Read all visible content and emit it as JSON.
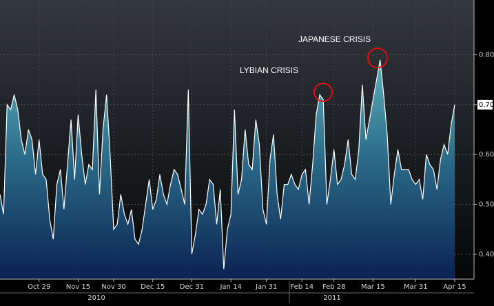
{
  "chart_data": {
    "type": "area",
    "series": [
      {
        "color": "#ffffff",
        "values": [
          0.52,
          0.48,
          0.7,
          0.69,
          0.72,
          0.69,
          0.63,
          0.6,
          0.65,
          0.63,
          0.56,
          0.63,
          0.56,
          0.55,
          0.47,
          0.43,
          0.54,
          0.57,
          0.49,
          0.58,
          0.67,
          0.55,
          0.68,
          0.6,
          0.54,
          0.58,
          0.57,
          0.73,
          0.52,
          0.65,
          0.72,
          0.6,
          0.45,
          0.46,
          0.52,
          0.48,
          0.46,
          0.49,
          0.43,
          0.42,
          0.45,
          0.5,
          0.55,
          0.49,
          0.51,
          0.56,
          0.52,
          0.5,
          0.54,
          0.57,
          0.56,
          0.53,
          0.5,
          0.73,
          0.4,
          0.44,
          0.49,
          0.48,
          0.5,
          0.55,
          0.54,
          0.46,
          0.53,
          0.37,
          0.45,
          0.48,
          0.69,
          0.52,
          0.55,
          0.65,
          0.58,
          0.57,
          0.67,
          0.62,
          0.49,
          0.46,
          0.59,
          0.64,
          0.52,
          0.47,
          0.54,
          0.54,
          0.56,
          0.54,
          0.53,
          0.56,
          0.57,
          0.5,
          0.58,
          0.68,
          0.72,
          0.71,
          0.5,
          0.55,
          0.61,
          0.54,
          0.55,
          0.58,
          0.63,
          0.56,
          0.55,
          0.61,
          0.74,
          0.63,
          0.67,
          0.71,
          0.75,
          0.79,
          0.72,
          0.64,
          0.5,
          0.56,
          0.61,
          0.57,
          0.57,
          0.57,
          0.55,
          0.54,
          0.55,
          0.51,
          0.6,
          0.58,
          0.57,
          0.53,
          0.59,
          0.62,
          0.6,
          0.66,
          0.7
        ]
      }
    ],
    "categories": [
      null,
      null,
      null,
      null,
      null,
      null,
      null,
      null,
      null,
      null,
      null,
      "Oct 29",
      null,
      null,
      null,
      null,
      null,
      null,
      null,
      null,
      null,
      null,
      "Nov 15",
      null,
      null,
      null,
      null,
      null,
      null,
      null,
      null,
      null,
      "Nov 30",
      null,
      null,
      null,
      null,
      null,
      null,
      null,
      null,
      null,
      null,
      "Dec 15",
      null,
      null,
      null,
      null,
      null,
      null,
      null,
      null,
      null,
      null,
      "Dec 31",
      null,
      null,
      null,
      null,
      null,
      null,
      null,
      null,
      null,
      null,
      "Jan 14",
      null,
      null,
      null,
      null,
      null,
      null,
      null,
      null,
      null,
      "Jan 31",
      null,
      null,
      null,
      null,
      null,
      null,
      null,
      null,
      null,
      "Feb 14",
      null,
      null,
      null,
      null,
      null,
      null,
      null,
      null,
      "Feb 28",
      null,
      null,
      null,
      null,
      null,
      null,
      null,
      null,
      null,
      null,
      "Mar 15",
      null,
      null,
      null,
      null,
      null,
      null,
      null,
      null,
      null,
      null,
      null,
      "Mar 31",
      null,
      null,
      null,
      null,
      null,
      null,
      null,
      null,
      null,
      null,
      "Apr 15"
    ],
    "x_groups": [
      "2010",
      "2011"
    ],
    "annotations": [
      "LYBIAN CRISIS",
      "JAPANESE CRISIS"
    ],
    "ylim": [
      0.35,
      0.91
    ],
    "yticks": [
      {
        "value": 0.4,
        "label": "0.40"
      },
      {
        "value": 0.5,
        "label": "0.50"
      },
      {
        "value": 0.6,
        "label": "0.60"
      },
      {
        "value": 0.7,
        "label": "0.70"
      },
      {
        "value": 0.8,
        "label": "0.80"
      }
    ],
    "grid": true
  }
}
